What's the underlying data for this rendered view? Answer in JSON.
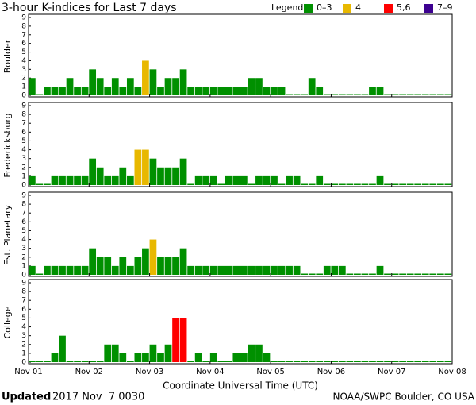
{
  "title": "3-hour K-indices for Last 7 days",
  "legend_title": "Legend:",
  "legend": [
    {
      "label": "0–3",
      "color": "#009000"
    },
    {
      "label": "4",
      "color": "#e8b800"
    },
    {
      "label": "5,6",
      "color": "#ff0000"
    },
    {
      "label": "7–9",
      "color": "#3c0090"
    }
  ],
  "xticks": [
    "Nov 01",
    "Nov 02",
    "Nov 03",
    "Nov 04",
    "Nov 05",
    "Nov 06",
    "Nov 07",
    "Nov 08"
  ],
  "xlabel": "Coordinate Universal Time (UTC)",
  "footer": {
    "updated_label": "Updated",
    "updated_time": "2017 Nov  7 0030",
    "source": "NOAA/SWPC Boulder, CO USA"
  },
  "chart_data": [
    {
      "type": "bar",
      "ylabel": "Boulder",
      "ylim": [
        0,
        9
      ],
      "yticks": [
        0,
        1,
        2,
        3,
        4,
        5,
        6,
        7,
        8,
        9
      ],
      "values": [
        2,
        0,
        1,
        1,
        1,
        2,
        1,
        1,
        3,
        2,
        1,
        2,
        1,
        2,
        1,
        4,
        3,
        1,
        2,
        2,
        3,
        1,
        1,
        1,
        1,
        1,
        1,
        1,
        1,
        2,
        2,
        1,
        1,
        1,
        0,
        0,
        0,
        2,
        1,
        0,
        0,
        0,
        0,
        0,
        0,
        1,
        1,
        0,
        0,
        0,
        0,
        0,
        0,
        0,
        0,
        0
      ]
    },
    {
      "type": "bar",
      "ylabel": "Fredericksburg",
      "ylim": [
        0,
        9
      ],
      "yticks": [
        0,
        1,
        2,
        3,
        4,
        5,
        6,
        7,
        8,
        9
      ],
      "values": [
        1,
        0,
        0,
        1,
        1,
        1,
        1,
        1,
        3,
        2,
        1,
        1,
        2,
        1,
        4,
        4,
        3,
        2,
        2,
        2,
        3,
        0,
        1,
        1,
        1,
        0,
        1,
        1,
        1,
        0,
        1,
        1,
        1,
        0,
        1,
        1,
        0,
        0,
        1,
        0,
        0,
        0,
        0,
        0,
        0,
        0,
        1,
        0,
        0,
        0,
        0,
        0,
        0,
        0,
        0,
        0
      ]
    },
    {
      "type": "bar",
      "ylabel": "Est. Planetary",
      "ylim": [
        0,
        9
      ],
      "yticks": [
        0,
        1,
        2,
        3,
        4,
        5,
        6,
        7,
        8,
        9
      ],
      "values": [
        1,
        0,
        1,
        1,
        1,
        1,
        1,
        1,
        3,
        2,
        2,
        1,
        2,
        1,
        2,
        3,
        4,
        2,
        2,
        2,
        3,
        1,
        1,
        1,
        1,
        1,
        1,
        1,
        1,
        1,
        1,
        1,
        1,
        1,
        1,
        1,
        0,
        0,
        0,
        1,
        1,
        1,
        0,
        0,
        0,
        0,
        1,
        0,
        0,
        0,
        0,
        0,
        0,
        0,
        0,
        0
      ]
    },
    {
      "type": "bar",
      "ylabel": "College",
      "ylim": [
        0,
        9
      ],
      "yticks": [
        0,
        1,
        2,
        3,
        4,
        5,
        6,
        7,
        8,
        9
      ],
      "values": [
        0,
        0,
        0,
        1,
        3,
        0,
        0,
        0,
        0,
        0,
        2,
        2,
        1,
        0,
        1,
        1,
        2,
        1,
        2,
        5,
        5,
        0,
        1,
        0,
        1,
        0,
        0,
        1,
        1,
        2,
        2,
        1,
        0,
        0,
        0,
        0,
        0,
        0,
        0,
        0,
        0,
        0,
        0,
        0,
        0,
        0,
        0,
        0,
        0,
        0,
        0,
        0,
        0,
        0,
        0,
        0
      ]
    }
  ]
}
